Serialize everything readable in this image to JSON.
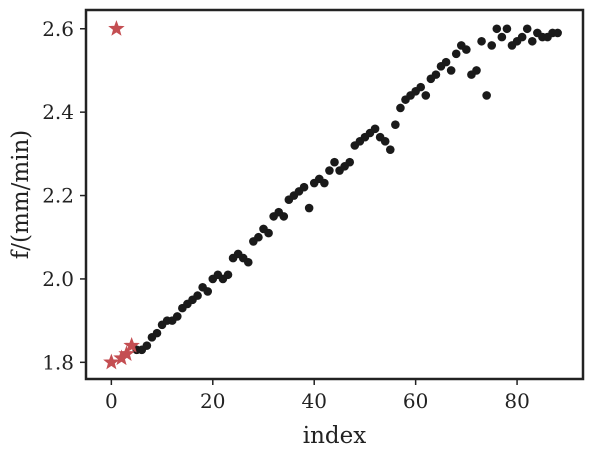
{
  "chart_data": {
    "type": "scatter",
    "title": "",
    "xlabel": "index",
    "ylabel": "f/(mm/min)",
    "xlim": [
      -5,
      93
    ],
    "ylim": [
      1.76,
      2.645
    ],
    "xticks": [
      0,
      20,
      40,
      60,
      80
    ],
    "yticks": [
      1.8,
      2.0,
      2.2,
      2.4,
      2.6
    ],
    "xtick_labels": [
      "0",
      "20",
      "40",
      "60",
      "80"
    ],
    "ytick_labels": [
      "1.8",
      "2.0",
      "2.2",
      "2.4",
      "2.6"
    ],
    "grid": false,
    "legend": "none",
    "series": [
      {
        "marker": "circle",
        "color": "#1a1a1a",
        "points": [
          [
            5,
            1.83
          ],
          [
            6,
            1.83
          ],
          [
            7,
            1.84
          ],
          [
            8,
            1.86
          ],
          [
            9,
            1.87
          ],
          [
            10,
            1.89
          ],
          [
            11,
            1.9
          ],
          [
            12,
            1.9
          ],
          [
            13,
            1.91
          ],
          [
            14,
            1.93
          ],
          [
            15,
            1.94
          ],
          [
            16,
            1.95
          ],
          [
            17,
            1.96
          ],
          [
            18,
            1.98
          ],
          [
            19,
            1.97
          ],
          [
            20,
            2.0
          ],
          [
            21,
            2.01
          ],
          [
            22,
            2.0
          ],
          [
            23,
            2.01
          ],
          [
            24,
            2.05
          ],
          [
            25,
            2.06
          ],
          [
            26,
            2.05
          ],
          [
            27,
            2.04
          ],
          [
            28,
            2.09
          ],
          [
            29,
            2.1
          ],
          [
            30,
            2.12
          ],
          [
            31,
            2.11
          ],
          [
            32,
            2.15
          ],
          [
            33,
            2.16
          ],
          [
            34,
            2.15
          ],
          [
            35,
            2.19
          ],
          [
            36,
            2.2
          ],
          [
            37,
            2.21
          ],
          [
            38,
            2.22
          ],
          [
            39,
            2.17
          ],
          [
            40,
            2.23
          ],
          [
            41,
            2.24
          ],
          [
            42,
            2.23
          ],
          [
            43,
            2.26
          ],
          [
            44,
            2.28
          ],
          [
            45,
            2.26
          ],
          [
            46,
            2.27
          ],
          [
            47,
            2.28
          ],
          [
            48,
            2.32
          ],
          [
            49,
            2.33
          ],
          [
            50,
            2.34
          ],
          [
            51,
            2.35
          ],
          [
            52,
            2.36
          ],
          [
            53,
            2.34
          ],
          [
            54,
            2.33
          ],
          [
            55,
            2.31
          ],
          [
            56,
            2.37
          ],
          [
            57,
            2.41
          ],
          [
            58,
            2.43
          ],
          [
            59,
            2.44
          ],
          [
            60,
            2.45
          ],
          [
            61,
            2.46
          ],
          [
            62,
            2.44
          ],
          [
            63,
            2.48
          ],
          [
            64,
            2.49
          ],
          [
            65,
            2.51
          ],
          [
            66,
            2.52
          ],
          [
            67,
            2.5
          ],
          [
            68,
            2.54
          ],
          [
            69,
            2.56
          ],
          [
            70,
            2.55
          ],
          [
            71,
            2.49
          ],
          [
            72,
            2.5
          ],
          [
            73,
            2.57
          ],
          [
            74,
            2.44
          ],
          [
            75,
            2.56
          ],
          [
            76,
            2.6
          ],
          [
            77,
            2.58
          ],
          [
            78,
            2.6
          ],
          [
            79,
            2.56
          ],
          [
            80,
            2.57
          ],
          [
            81,
            2.58
          ],
          [
            82,
            2.6
          ],
          [
            83,
            2.57
          ],
          [
            84,
            2.59
          ],
          [
            85,
            2.58
          ],
          [
            86,
            2.58
          ],
          [
            87,
            2.59
          ],
          [
            88,
            2.59
          ]
        ]
      },
      {
        "marker": "star",
        "color": "#c44e52",
        "points": [
          [
            0,
            1.8
          ],
          [
            1,
            2.6
          ],
          [
            2,
            1.81
          ],
          [
            3,
            1.82
          ],
          [
            4,
            1.84
          ]
        ]
      }
    ]
  }
}
